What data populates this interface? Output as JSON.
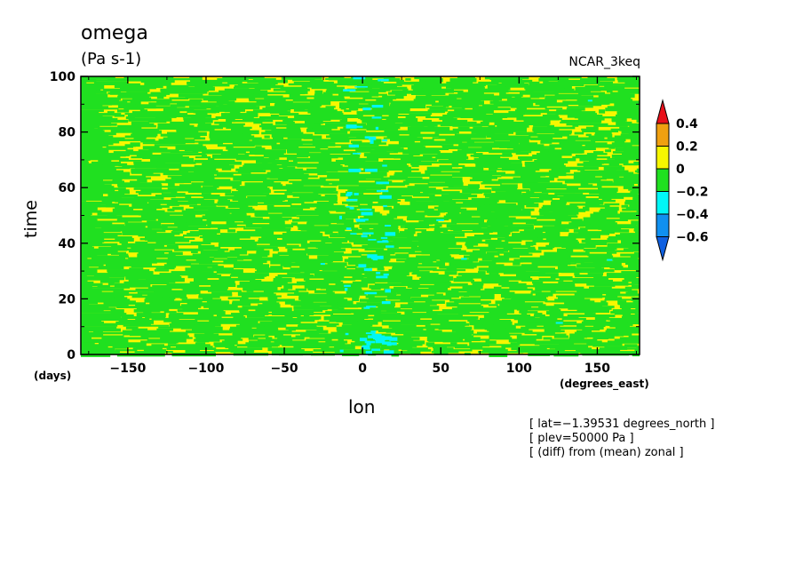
{
  "chart_data": {
    "type": "heatmap",
    "title": "omega",
    "units": "(Pa s-1)",
    "source": "NCAR_3keq",
    "xlabel": "lon",
    "ylabel": "time",
    "xunit": "(degrees_east)",
    "yunit": "(days)",
    "xlim": [
      -180,
      177
    ],
    "ylim": [
      0,
      100
    ],
    "xticks": [
      -150,
      -100,
      -50,
      0,
      50,
      100,
      150
    ],
    "xtick_labels": [
      "−150",
      "−100",
      "−50",
      "0",
      "50",
      "100",
      "150"
    ],
    "yticks": [
      0,
      20,
      40,
      60,
      80,
      100
    ],
    "ytick_labels": [
      "0",
      "20",
      "40",
      "60",
      "80",
      "100"
    ],
    "colorbar": {
      "levels": [
        0.4,
        0.2,
        0,
        -0.2,
        -0.4,
        -0.6
      ],
      "level_labels": [
        "0.4",
        "0.2",
        "0",
        "−0.2",
        "−0.4",
        "−0.6"
      ],
      "colors": [
        "#e8101a",
        "#f0a010",
        "#f7f700",
        "#20e020",
        "#00f7f7",
        "#1090f0",
        "#1060e0"
      ]
    },
    "notes": [
      "[ lat=−1.39531 degrees_north ]",
      "[ plev=50000 Pa ]",
      "[ (diff) from (mean) zonal ]"
    ]
  }
}
